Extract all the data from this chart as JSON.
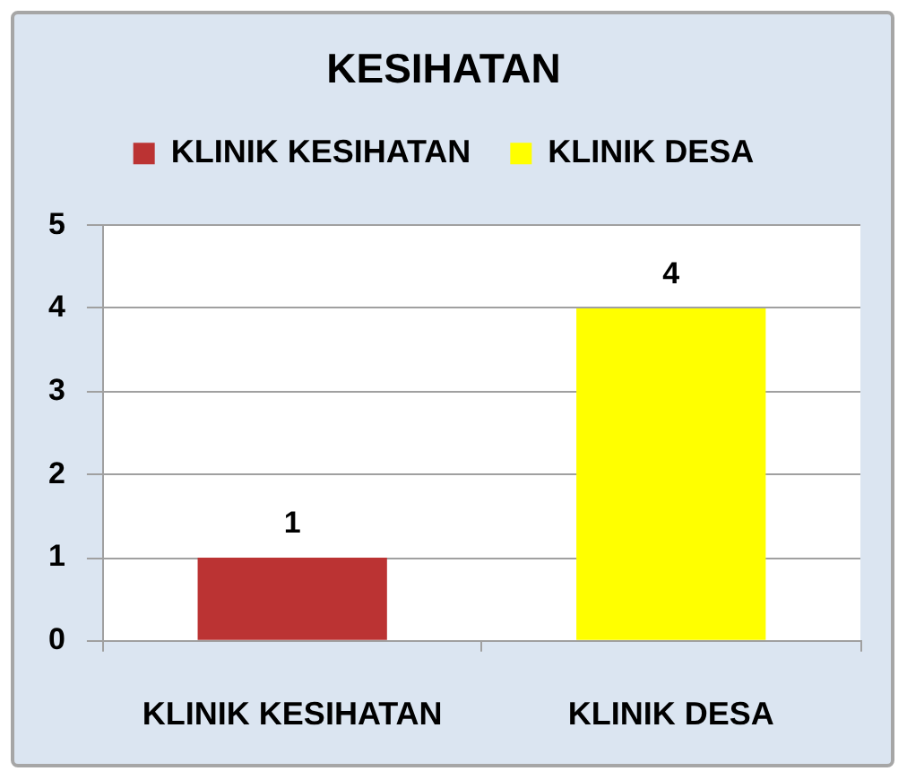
{
  "chart_data": {
    "type": "bar",
    "title": "KESIHATAN",
    "categories": [
      "KLINIK KESIHATAN",
      "KLINIK DESA"
    ],
    "series": [
      {
        "name": "KLINIK KESIHATAN",
        "color": "#bb3333",
        "values": [
          1,
          null
        ]
      },
      {
        "name": "KLINIK DESA",
        "color": "#ffff00",
        "values": [
          null,
          4
        ]
      }
    ],
    "ylim": [
      0,
      5
    ],
    "yticks": [
      0,
      1,
      2,
      3,
      4,
      5
    ],
    "grid": "y",
    "legend": "top",
    "data_labels": true
  }
}
